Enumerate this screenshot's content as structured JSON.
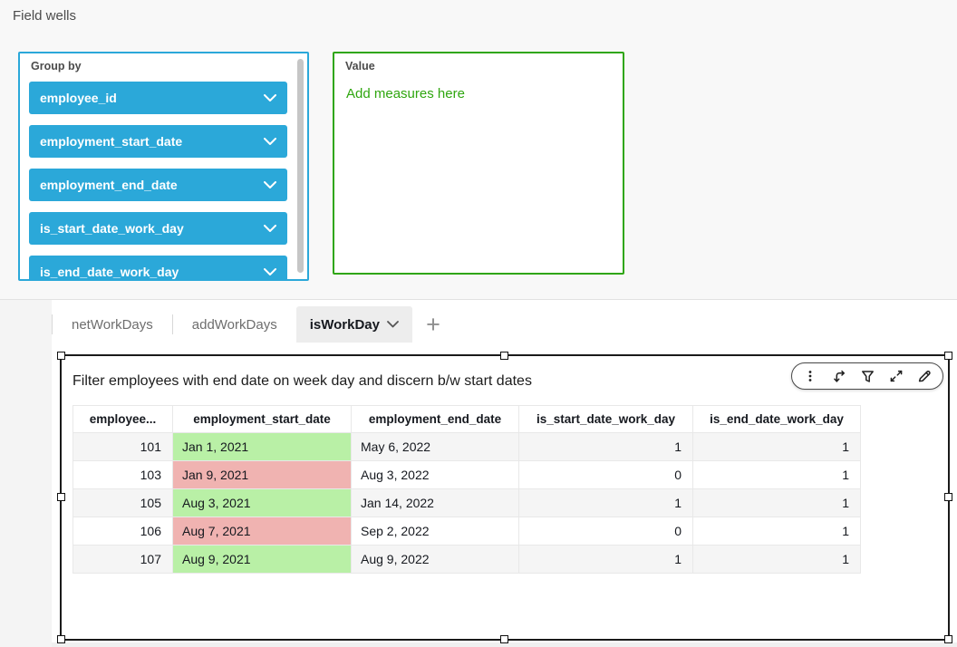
{
  "panel": {
    "title": "Field wells"
  },
  "field_wells": {
    "group_by": {
      "label": "Group by",
      "fields": [
        "employee_id",
        "employment_start_date",
        "employment_end_date",
        "is_start_date_work_day",
        "is_end_date_work_day"
      ]
    },
    "value": {
      "label": "Value",
      "placeholder": "Add measures here"
    }
  },
  "tabs": {
    "items": [
      {
        "label": "netWorkDays",
        "active": false
      },
      {
        "label": "addWorkDays",
        "active": false
      },
      {
        "label": "isWorkDay",
        "active": true
      }
    ],
    "add_label": "+"
  },
  "visual": {
    "title": "Filter employees with end date on week day and discern b/w start dates",
    "toolbar": {
      "icons": [
        "kebab-menu",
        "sort",
        "filter",
        "expand",
        "edit"
      ]
    },
    "table": {
      "columns": [
        "employee...",
        "employment_start_date",
        "employment_end_date",
        "is_start_date_work_day",
        "is_end_date_work_day"
      ],
      "rows": [
        {
          "employee_id": "101",
          "employment_start_date": "Jan 1, 2021",
          "start_highlight": "green",
          "employment_end_date": "May 6, 2022",
          "is_start_date_work_day": "1",
          "is_end_date_work_day": "1"
        },
        {
          "employee_id": "103",
          "employment_start_date": "Jan 9, 2021",
          "start_highlight": "red",
          "employment_end_date": "Aug 3, 2022",
          "is_start_date_work_day": "0",
          "is_end_date_work_day": "1"
        },
        {
          "employee_id": "105",
          "employment_start_date": "Aug 3, 2021",
          "start_highlight": "green",
          "employment_end_date": "Jan 14, 2022",
          "is_start_date_work_day": "1",
          "is_end_date_work_day": "1"
        },
        {
          "employee_id": "106",
          "employment_start_date": "Aug 7, 2021",
          "start_highlight": "red",
          "employment_end_date": "Sep 2, 2022",
          "is_start_date_work_day": "0",
          "is_end_date_work_day": "1"
        },
        {
          "employee_id": "107",
          "employment_start_date": "Aug 9, 2021",
          "start_highlight": "green",
          "employment_end_date": "Aug 9, 2022",
          "is_start_date_work_day": "1",
          "is_end_date_work_day": "1"
        }
      ]
    }
  },
  "colors": {
    "pill_blue": "#2BA8D9",
    "value_green": "#2FA60F",
    "highlight_green": "#B9F0A6",
    "highlight_red": "#F0B3B1",
    "selection_border": "#1A1A1A"
  }
}
